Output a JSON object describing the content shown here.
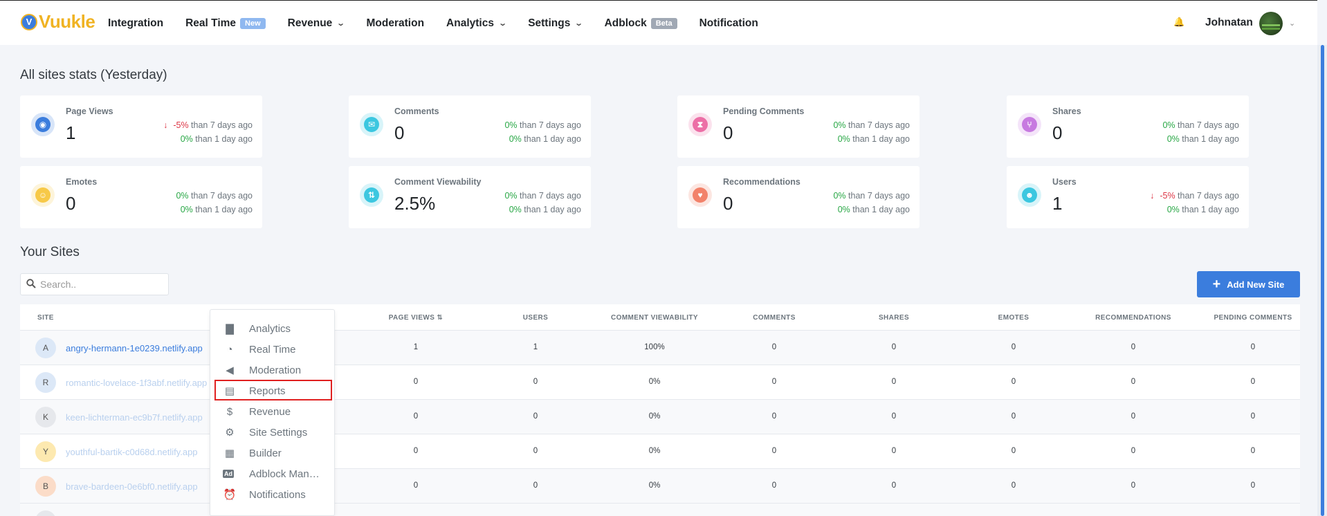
{
  "app": {
    "logo_letter": "V",
    "logo_text": "Vuukle"
  },
  "nav": [
    {
      "label": "Integration"
    },
    {
      "label": "Real Time",
      "badge": "New",
      "badge_color": "#8fb8f0"
    },
    {
      "label": "Revenue",
      "dropdown": true
    },
    {
      "label": "Moderation"
    },
    {
      "label": "Analytics",
      "dropdown": true
    },
    {
      "label": "Settings",
      "dropdown": true
    },
    {
      "label": "Adblock",
      "badge": "Beta",
      "badge_color": "#a0a8b4"
    },
    {
      "label": "Notification"
    }
  ],
  "user": {
    "name": "Johnatan"
  },
  "stats": {
    "title": "All sites stats (Yesterday)",
    "cards": [
      {
        "label": "Page Views",
        "value": "1",
        "icon": "eye-icon",
        "color": "#3b7ddd",
        "cmp7": "-5%",
        "cmp7_neg": true,
        "cmp1": "0%"
      },
      {
        "label": "Comments",
        "value": "0",
        "icon": "comments-icon",
        "color": "#3cc7e0",
        "cmp7": "0%",
        "cmp1": "0%"
      },
      {
        "label": "Pending Comments",
        "value": "0",
        "icon": "hourglass-icon",
        "color": "#ec6fa6",
        "cmp7": "0%",
        "cmp1": "0%"
      },
      {
        "label": "Shares",
        "value": "0",
        "icon": "share-icon",
        "color": "#c77ae0",
        "cmp7": "0%",
        "cmp1": "0%"
      },
      {
        "label": "Emotes",
        "value": "0",
        "icon": "smile-icon",
        "color": "#f7c948",
        "cmp7": "0%",
        "cmp1": "0%"
      },
      {
        "label": "Comment Viewability",
        "value": "2.5%",
        "icon": "viewability-icon",
        "color": "#3cc7e0",
        "cmp7": "0%",
        "cmp1": "0%"
      },
      {
        "label": "Recommendations",
        "value": "0",
        "icon": "heart-icon",
        "color": "#f2826a",
        "cmp7": "0%",
        "cmp1": "0%"
      },
      {
        "label": "Users",
        "value": "1",
        "icon": "user-icon",
        "color": "#3cc7e0",
        "cmp7": "-5%",
        "cmp7_neg": true,
        "cmp1": "0%"
      }
    ],
    "cmp7_text": "than 7 days ago",
    "cmp1_text": "than 1 day ago"
  },
  "sites": {
    "title": "Your Sites",
    "search_placeholder": "Search..",
    "add_label": "Add New Site",
    "columns": [
      "SITE",
      "PAGE VIEWS",
      "USERS",
      "COMMENT VIEWABILITY",
      "COMMENTS",
      "SHARES",
      "EMOTES",
      "RECOMMENDATIONS",
      "PENDING COMMENTS"
    ],
    "rows": [
      {
        "letter": "A",
        "name": "angry-hermann-1e0239.netlify.app",
        "avatar_color": "#dce8f7",
        "values": [
          "1",
          "1",
          "100%",
          "0",
          "0",
          "0",
          "0",
          "0"
        ]
      },
      {
        "letter": "R",
        "name": "romantic-lovelace-1f3abf.netlify.app",
        "avatar_color": "#dce8f7",
        "values": [
          "0",
          "0",
          "0%",
          "0",
          "0",
          "0",
          "0",
          "0"
        ]
      },
      {
        "letter": "K",
        "name": "keen-lichterman-ec9b7f.netlify.app",
        "avatar_color": "#e6e8ec",
        "values": [
          "0",
          "0",
          "0%",
          "0",
          "0",
          "0",
          "0",
          "0"
        ]
      },
      {
        "letter": "Y",
        "name": "youthful-bartik-c0d68d.netlify.app",
        "avatar_color": "#fde9b0",
        "values": [
          "0",
          "0",
          "0%",
          "0",
          "0",
          "0",
          "0",
          "0"
        ]
      },
      {
        "letter": "B",
        "name": "brave-bardeen-0e6bf0.netlify.app",
        "avatar_color": "#fbdcc8",
        "values": [
          "0",
          "0",
          "0%",
          "0",
          "0",
          "0",
          "0",
          "0"
        ]
      }
    ]
  },
  "menu": {
    "items": [
      {
        "label": "Analytics",
        "icon": "chart-icon"
      },
      {
        "label": "Real Time",
        "icon": "clock-icon"
      },
      {
        "label": "Moderation",
        "icon": "megaphone-icon"
      },
      {
        "label": "Reports",
        "icon": "book-icon",
        "highlighted": true
      },
      {
        "label": "Revenue",
        "icon": "dollar-icon"
      },
      {
        "label": "Site Settings",
        "icon": "gear-icon"
      },
      {
        "label": "Builder",
        "icon": "builder-icon"
      },
      {
        "label": "Adblock Man…",
        "icon": "ad-icon"
      },
      {
        "label": "Notifications",
        "icon": "alarm-icon"
      }
    ]
  }
}
